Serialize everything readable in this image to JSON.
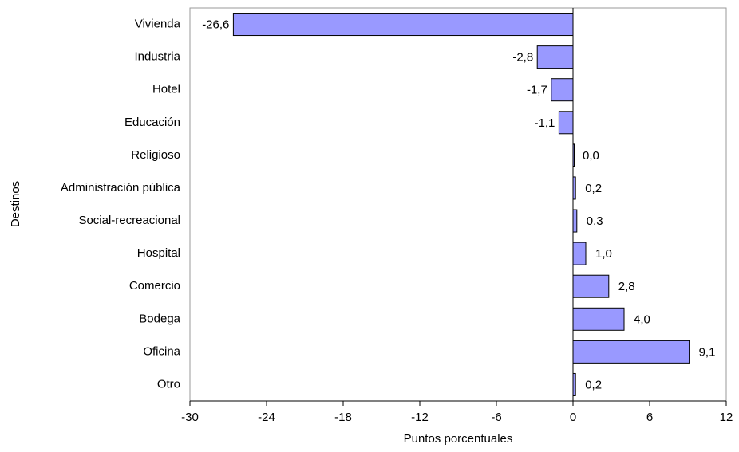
{
  "chart_data": {
    "type": "bar",
    "orientation": "horizontal",
    "x_label": "Puntos porcentuales",
    "y_label": "Destinos",
    "categories": [
      "Vivienda",
      "Industria",
      "Hotel",
      "Educación",
      "Religioso",
      "Administración pública",
      "Social-recreacional",
      "Hospital",
      "Comercio",
      "Bodega",
      "Oficina",
      "Otro"
    ],
    "values": [
      -26.6,
      -2.8,
      -1.7,
      -1.1,
      0.0,
      0.2,
      0.3,
      1.0,
      2.8,
      4.0,
      9.1,
      0.2
    ],
    "value_labels": [
      "-26,6",
      "-2,8",
      "-1,7",
      "-1,1",
      "0,0",
      "0,2",
      "0,3",
      "1,0",
      "2,8",
      "4,0",
      "9,1",
      "0,2"
    ],
    "color": "#9999ff",
    "xlim": [
      -30,
      12
    ],
    "xticks": [
      -30,
      -24,
      -18,
      -12,
      -6,
      0,
      6,
      12
    ],
    "grid": false
  }
}
